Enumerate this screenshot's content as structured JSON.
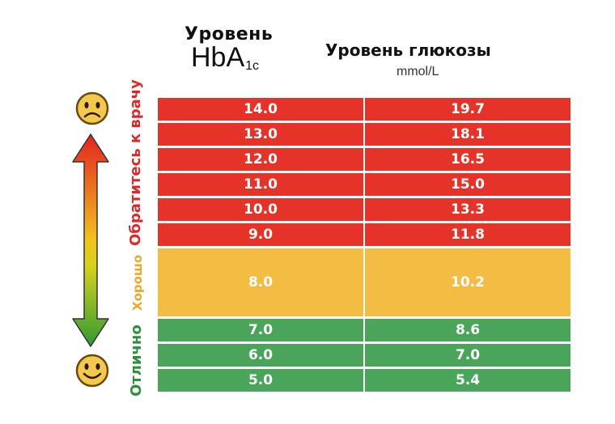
{
  "header": {
    "hba_label": "Уровень",
    "hba_main": "HbA",
    "hba_sub": "1c",
    "glucose_title": "Уровень глюкозы",
    "glucose_unit": "mmol/L"
  },
  "zones": {
    "doctor": "Обратитесь к врачу",
    "good": "Хорошо",
    "excellent": "Отлично"
  },
  "icons": {
    "top": "sad-face-icon",
    "bottom": "happy-face-icon",
    "arrow": "double-arrow-icon"
  },
  "colors": {
    "red": "#e5332a",
    "yellow": "#f3bd44",
    "green": "#4aa55a"
  },
  "chart_data": {
    "type": "table",
    "columns": [
      "HbA1c",
      "Уровень глюкозы mmol/L"
    ],
    "rows": [
      {
        "hba1c": "14.0",
        "glucose": "19.7",
        "zone": "red"
      },
      {
        "hba1c": "13.0",
        "glucose": "18.1",
        "zone": "red"
      },
      {
        "hba1c": "12.0",
        "glucose": "16.5",
        "zone": "red"
      },
      {
        "hba1c": "11.0",
        "glucose": "15.0",
        "zone": "red"
      },
      {
        "hba1c": "10.0",
        "glucose": "13.3",
        "zone": "red"
      },
      {
        "hba1c": "9.0",
        "glucose": "11.8",
        "zone": "red"
      },
      {
        "hba1c": "8.0",
        "glucose": "10.2",
        "zone": "yellow"
      },
      {
        "hba1c": "7.0",
        "glucose": "8.6",
        "zone": "green"
      },
      {
        "hba1c": "6.0",
        "glucose": "7.0",
        "zone": "green"
      },
      {
        "hba1c": "5.0",
        "glucose": "5.4",
        "zone": "green"
      }
    ]
  }
}
